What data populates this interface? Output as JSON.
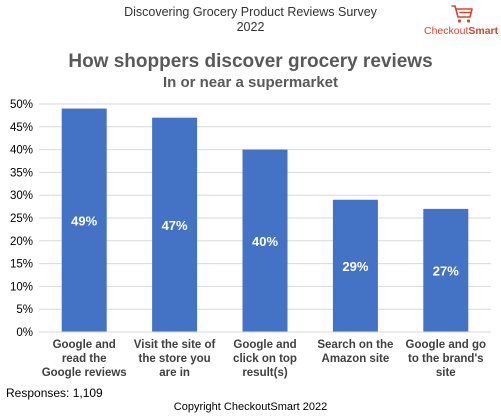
{
  "header": {
    "survey_title_line1": "Discovering Grocery Product Reviews Survey",
    "survey_title_line2": "2022",
    "brand_checkout": "Checkout",
    "brand_smart": "Smart",
    "brand_color": "#d9432f"
  },
  "chart_data": {
    "type": "bar",
    "title": "How shoppers discover grocery reviews",
    "subtitle": "In or near a supermarket",
    "categories": [
      [
        "Google and",
        "read the",
        "Google reviews"
      ],
      [
        "Visit the site of",
        "the store you",
        "are in"
      ],
      [
        "Google and",
        "click on top",
        "result(s)"
      ],
      [
        "Search on the",
        "Amazon site"
      ],
      [
        "Google and go",
        "to the brand's",
        "site"
      ]
    ],
    "values": [
      49,
      47,
      40,
      29,
      27
    ],
    "data_labels": [
      "49%",
      "47%",
      "40%",
      "29%",
      "27%"
    ],
    "ylim": [
      0,
      50
    ],
    "yticks": [
      "0%",
      "5%",
      "10%",
      "15%",
      "20%",
      "25%",
      "30%",
      "35%",
      "40%",
      "45%",
      "50%"
    ],
    "grid": true,
    "bar_color": "#4472c4",
    "label_color": "#ffffff",
    "legend": "none"
  },
  "footer": {
    "responses": "Responses: 1,109",
    "copyright": "Copyright CheckoutSmart 2022"
  }
}
